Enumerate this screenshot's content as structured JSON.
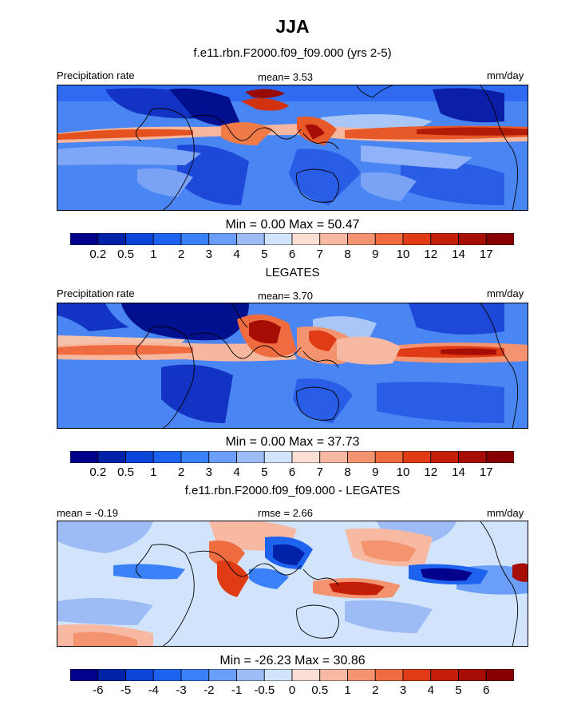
{
  "figure": {
    "title": "JJA"
  },
  "chart_data": [
    {
      "type": "heatmap",
      "panel_title": "f.e11.rbn.F2000.f09_f09.000 (yrs 2-5)",
      "left_label": "Precipitation rate",
      "center_label": "mean=   3.53",
      "right_label": "mm/day",
      "mean": 3.53,
      "min": 0.0,
      "max": 50.47,
      "stats_text": "Min =   0.00 Max =  50.47",
      "colorbar": {
        "levels": [
          "0.2",
          "0.5",
          "1",
          "2",
          "3",
          "4",
          "5",
          "6",
          "7",
          "8",
          "9",
          "10",
          "12",
          "14",
          "17"
        ],
        "colors": [
          "#00008b",
          "#0022a8",
          "#0a44d8",
          "#1e63f0",
          "#3a80f8",
          "#6a9ef8",
          "#9dbcf6",
          "#d2e4fb",
          "#fbdfd4",
          "#f8b9a2",
          "#f4936f",
          "#ef6b40",
          "#df3b14",
          "#c21e08",
          "#a60d04",
          "#870000"
        ]
      },
      "grid": false
    },
    {
      "type": "heatmap",
      "panel_title": "LEGATES",
      "left_label": "Precipitation rate",
      "center_label": "mean=   3.70",
      "right_label": "mm/day",
      "mean": 3.7,
      "min": 0.0,
      "max": 37.73,
      "stats_text": "Min =   0.00 Max =  37.73",
      "colorbar": {
        "levels": [
          "0.2",
          "0.5",
          "1",
          "2",
          "3",
          "4",
          "5",
          "6",
          "7",
          "8",
          "9",
          "10",
          "12",
          "14",
          "17"
        ],
        "colors": [
          "#00008b",
          "#0022a8",
          "#0a44d8",
          "#1e63f0",
          "#3a80f8",
          "#6a9ef8",
          "#9dbcf6",
          "#d2e4fb",
          "#fbdfd4",
          "#f8b9a2",
          "#f4936f",
          "#ef6b40",
          "#df3b14",
          "#c21e08",
          "#a60d04",
          "#870000"
        ]
      },
      "grid": false
    },
    {
      "type": "heatmap",
      "panel_title": "f.e11.rbn.F2000.f09_f09.000 - LEGATES",
      "left_label": "mean =  -0.19",
      "center_label": "rmse =   2.66",
      "right_label": "mm/day",
      "mean": -0.19,
      "rmse": 2.66,
      "min": -26.23,
      "max": 30.86,
      "stats_text": "Min = -26.23 Max =  30.86",
      "colorbar": {
        "levels": [
          "-6",
          "-5",
          "-4",
          "-3",
          "-2",
          "-1",
          "-0.5",
          "0",
          "0.5",
          "1",
          "2",
          "3",
          "4",
          "5",
          "6"
        ],
        "colors": [
          "#00008b",
          "#0022a8",
          "#0a44d8",
          "#1e63f0",
          "#3a80f8",
          "#6a9ef8",
          "#9dbcf6",
          "#d2e4fb",
          "#fbdfd4",
          "#f8b9a2",
          "#f4936f",
          "#ef6b40",
          "#df3b14",
          "#c21e08",
          "#a60d04",
          "#870000"
        ]
      },
      "grid": false
    }
  ]
}
